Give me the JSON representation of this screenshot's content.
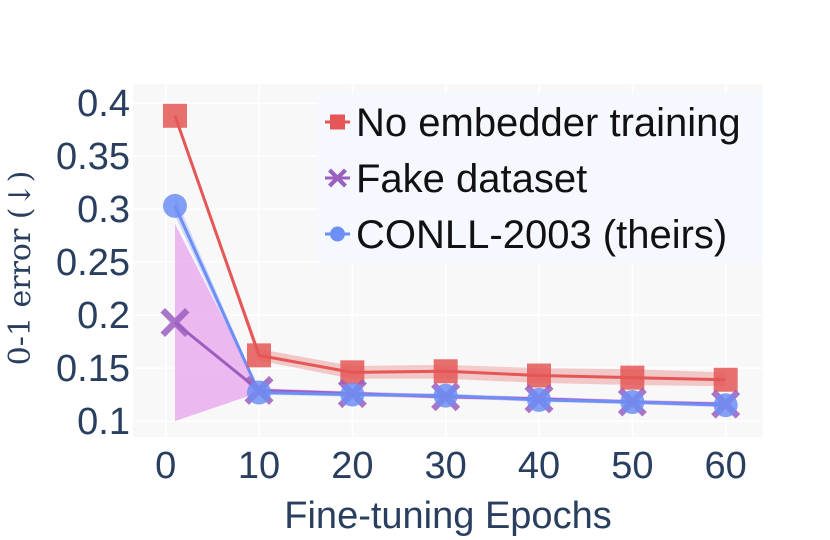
{
  "chart_data": {
    "type": "line",
    "xlabel": "Fine-tuning Epochs",
    "ylabel": "0-1 error (↓)",
    "xlim": [
      -3.5,
      64
    ],
    "ylim": [
      0.085,
      0.418
    ],
    "x_ticks": [
      0,
      10,
      20,
      30,
      40,
      50,
      60
    ],
    "x_tick_labels": [
      "0",
      "10",
      "20",
      "30",
      "40",
      "50",
      "60"
    ],
    "y_ticks": [
      0.1,
      0.15,
      0.2,
      0.25,
      0.3,
      0.35,
      0.4
    ],
    "y_tick_labels": [
      "0.1",
      "0.15",
      "0.2",
      "0.25",
      "0.3",
      "0.35",
      "0.4"
    ],
    "grid": true,
    "legend_position": "top-right",
    "x": [
      1,
      10,
      20,
      30,
      40,
      50,
      60
    ],
    "series": [
      {
        "name": "No embedder training",
        "marker": "square",
        "color": "#e45756",
        "values": [
          0.388,
          0.162,
          0.146,
          0.147,
          0.143,
          0.141,
          0.139
        ],
        "lower": [
          0.386,
          0.157,
          0.14,
          0.14,
          0.136,
          0.134,
          0.133
        ],
        "upper": [
          0.39,
          0.168,
          0.152,
          0.153,
          0.15,
          0.149,
          0.146
        ]
      },
      {
        "name": "Fake dataset",
        "marker": "x",
        "color": "#9b5fc0",
        "values": [
          0.193,
          0.129,
          0.126,
          0.123,
          0.121,
          0.118,
          0.116
        ],
        "lower": [
          0.1,
          0.127,
          0.124,
          0.121,
          0.119,
          0.116,
          0.114
        ],
        "upper": [
          0.286,
          0.131,
          0.128,
          0.125,
          0.123,
          0.12,
          0.118
        ],
        "band_color": "#e8a3ee"
      },
      {
        "name": "CONLL-2003 (theirs)",
        "marker": "circle",
        "color": "#6d8ef5",
        "values": [
          0.303,
          0.127,
          0.125,
          0.124,
          0.12,
          0.118,
          0.115
        ],
        "lower": [
          0.294,
          0.125,
          0.123,
          0.122,
          0.118,
          0.116,
          0.113
        ],
        "upper": [
          0.312,
          0.129,
          0.127,
          0.126,
          0.122,
          0.12,
          0.117
        ]
      }
    ]
  },
  "colors": {
    "plot_background": "#f8f8f8",
    "legend_background": "#f5f8ff",
    "axis_text": "#2a3f5f"
  }
}
